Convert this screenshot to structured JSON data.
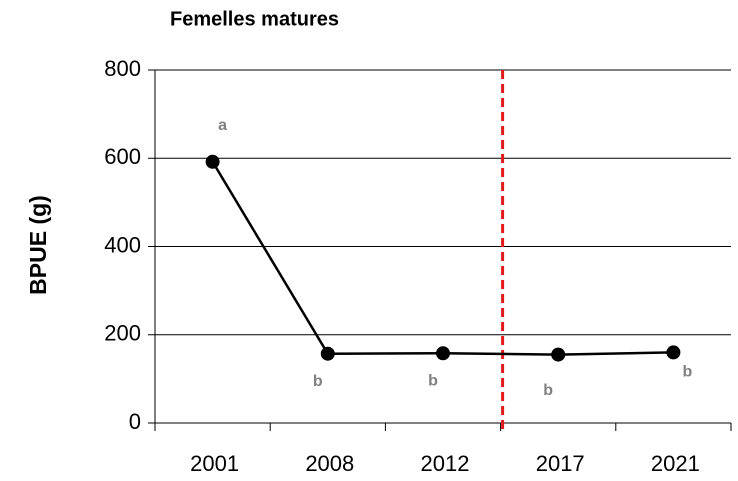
{
  "chart_data": {
    "type": "line",
    "title": "Femelles matures",
    "ylabel": "BPUE (g)",
    "categories": [
      "2001",
      "2008",
      "2012",
      "2017",
      "2021"
    ],
    "values": [
      592,
      157,
      158,
      155,
      160
    ],
    "point_labels": [
      "a",
      "b",
      "b",
      "b",
      "b"
    ],
    "color": "#000000",
    "label_color": "#808080",
    "divider_after": "2012",
    "divider_color": "#e31a1c",
    "ylim": [
      0,
      800
    ],
    "yticks": [
      0,
      200,
      400,
      600,
      800
    ],
    "grid": true
  }
}
